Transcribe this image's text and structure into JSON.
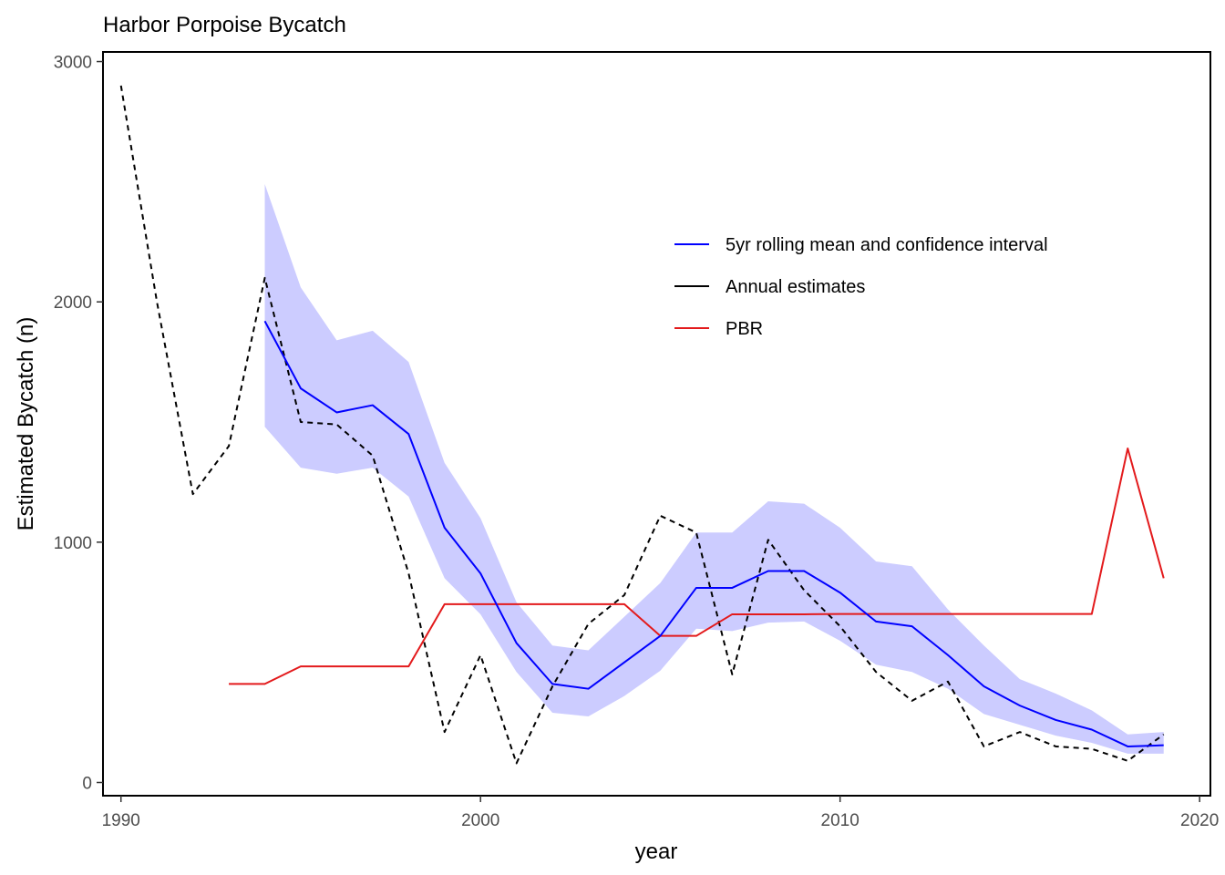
{
  "chart_data": {
    "type": "line",
    "title": "Harbor Porpoise Bycatch",
    "xlabel": "year",
    "ylabel": "Estimated Bycatch (n)",
    "xlim": [
      1989.5,
      2020.3
    ],
    "ylim": [
      -55,
      3040
    ],
    "x_ticks": [
      1990,
      2000,
      2010,
      2020
    ],
    "y_ticks": [
      0,
      1000,
      2000,
      3000
    ],
    "grid": false,
    "legend_position": "top-right",
    "series": [
      {
        "name": "5yr rolling mean and confidence interval",
        "color": "#0000ff",
        "style": "solid",
        "x": [
          1994,
          1995,
          1996,
          1997,
          1998,
          1999,
          2000,
          2001,
          2002,
          2003,
          2004,
          2005,
          2006,
          2007,
          2008,
          2009,
          2010,
          2011,
          2012,
          2013,
          2014,
          2015,
          2016,
          2017,
          2018,
          2019
        ],
        "y": [
          1920,
          1640,
          1540,
          1570,
          1450,
          1060,
          870,
          580,
          410,
          390,
          500,
          610,
          810,
          810,
          880,
          880,
          790,
          670,
          650,
          530,
          400,
          320,
          260,
          220,
          150,
          155
        ],
        "ci_lower": [
          1480,
          1310,
          1285,
          1310,
          1190,
          850,
          700,
          460,
          290,
          275,
          360,
          465,
          640,
          630,
          665,
          670,
          590,
          490,
          460,
          390,
          285,
          240,
          195,
          165,
          120,
          120
        ],
        "ci_upper": [
          2490,
          2060,
          1840,
          1880,
          1750,
          1330,
          1100,
          750,
          570,
          550,
          690,
          830,
          1040,
          1040,
          1170,
          1160,
          1060,
          920,
          900,
          720,
          570,
          430,
          370,
          300,
          200,
          210
        ],
        "ci_color": "#ccccff"
      },
      {
        "name": "Annual estimates",
        "color": "#000000",
        "style": "dashed",
        "x": [
          1990,
          1991,
          1992,
          1993,
          1994,
          1995,
          1996,
          1997,
          1998,
          1999,
          2000,
          2001,
          2002,
          2003,
          2004,
          2005,
          2006,
          2007,
          2008,
          2009,
          2010,
          2011,
          2012,
          2013,
          2014,
          2015,
          2016,
          2017,
          2018,
          2019
        ],
        "y": [
          2900,
          2000,
          1200,
          1400,
          2100,
          1500,
          1490,
          1360,
          870,
          210,
          530,
          80,
          400,
          660,
          780,
          1110,
          1040,
          450,
          1010,
          800,
          650,
          460,
          340,
          420,
          150,
          210,
          150,
          140,
          90,
          200
        ]
      },
      {
        "name": "PBR",
        "color": "#e31a1c",
        "style": "solid",
        "x": [
          1993,
          1994,
          1995,
          1996,
          1997,
          1998,
          1999,
          2000,
          2001,
          2002,
          2003,
          2004,
          2005,
          2006,
          2007,
          2008,
          2009,
          2010,
          2011,
          2012,
          2013,
          2014,
          2015,
          2016,
          2017,
          2018,
          2019
        ],
        "y": [
          410,
          410,
          483,
          483,
          483,
          483,
          742,
          742,
          742,
          742,
          742,
          742,
          610,
          610,
          700,
          700,
          700,
          701,
          701,
          701,
          701,
          701,
          701,
          701,
          701,
          1390,
          850
        ]
      }
    ]
  }
}
